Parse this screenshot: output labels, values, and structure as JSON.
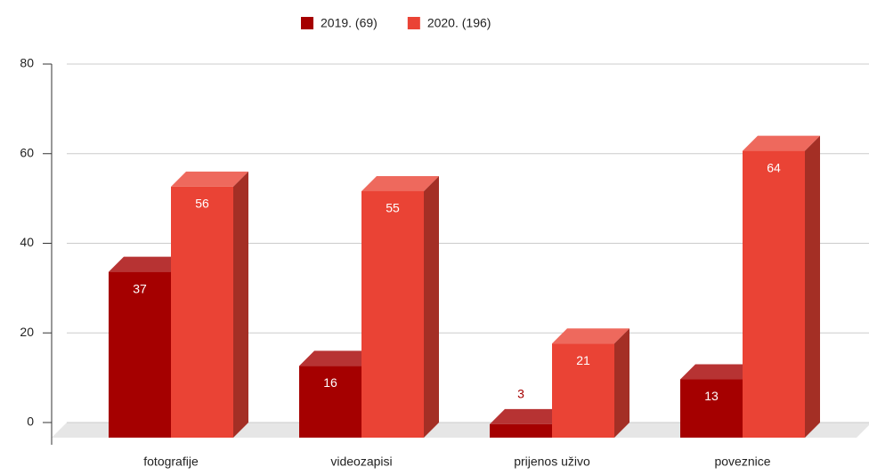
{
  "chart_data": {
    "type": "bar3d",
    "categories": [
      "fotografije",
      "videozapisi",
      "prijenos uživo",
      "poveznice"
    ],
    "series": [
      {
        "name": "2019. (69)",
        "color": "#a50000",
        "values": [
          37,
          16,
          3,
          13
        ]
      },
      {
        "name": "2020. (196)",
        "color": "#ea4335",
        "values": [
          56,
          55,
          21,
          64
        ]
      }
    ],
    "ylim": [
      0,
      80
    ],
    "yticks": [
      0,
      20,
      40,
      60,
      80
    ],
    "grid": true,
    "legend": "top"
  }
}
